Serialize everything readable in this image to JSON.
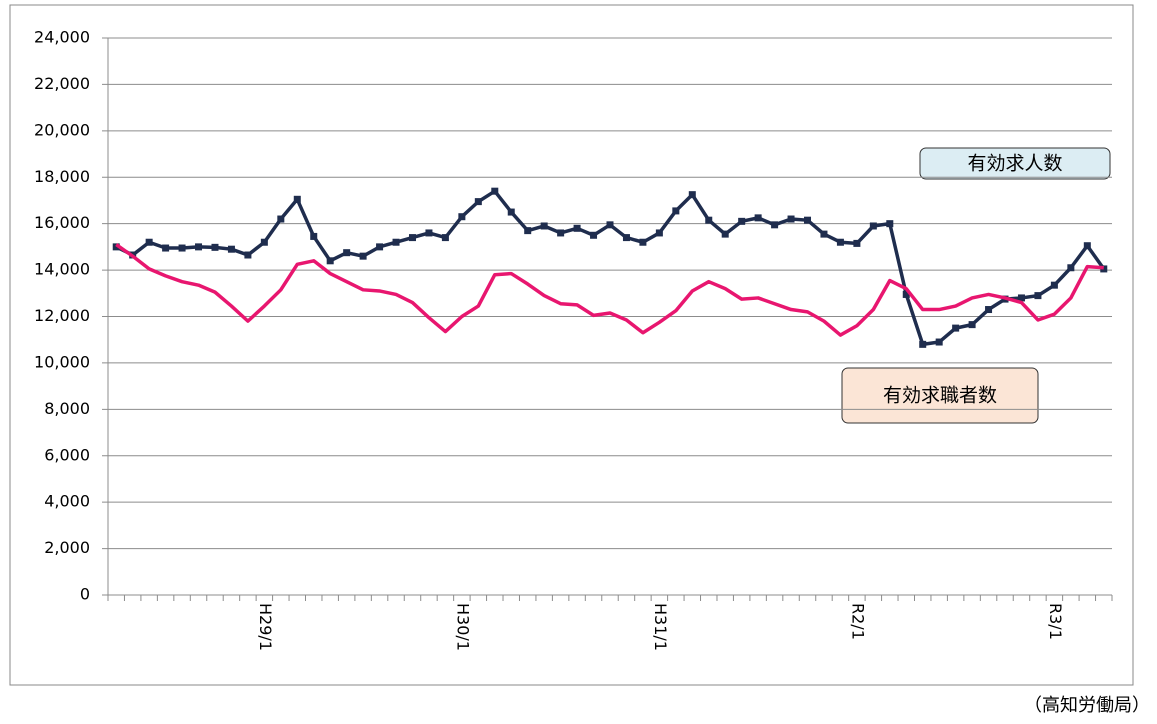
{
  "chart_data": {
    "type": "line",
    "categories": [
      null,
      null,
      null,
      null,
      null,
      null,
      null,
      null,
      null,
      "H29/1",
      null,
      null,
      null,
      null,
      null,
      null,
      null,
      null,
      null,
      null,
      null,
      "H30/1",
      null,
      null,
      null,
      null,
      null,
      null,
      null,
      null,
      null,
      null,
      null,
      "H31/1",
      null,
      null,
      null,
      null,
      null,
      null,
      null,
      null,
      null,
      null,
      null,
      "R2/1",
      null,
      null,
      null,
      null,
      null,
      null,
      null,
      null,
      null,
      null,
      null,
      "R3/1",
      null,
      null,
      null
    ],
    "series": [
      {
        "name": "有効求人数",
        "color": "#1f2d4e",
        "marker": true,
        "values": [
          15000,
          14650,
          15200,
          14950,
          14950,
          15000,
          14980,
          14900,
          14650,
          15200,
          16200,
          17050,
          15450,
          14400,
          14750,
          14600,
          15000,
          15200,
          15400,
          15600,
          15400,
          16300,
          16950,
          17400,
          16500,
          15700,
          15900,
          15600,
          15800,
          15500,
          15950,
          15400,
          15200,
          15600,
          16550,
          17250,
          16150,
          15550,
          16100,
          16250,
          15950,
          16200,
          16150,
          15550,
          15200,
          15150,
          15900,
          16000,
          12950,
          10800,
          10900,
          11500,
          11650,
          12300,
          12750,
          12800,
          12900,
          13350,
          14100,
          15050,
          14050
        ]
      },
      {
        "name": "有効求職者数",
        "color": "#e8166f",
        "marker": false,
        "values": [
          15100,
          14600,
          14050,
          13750,
          13500,
          13350,
          13050,
          12450,
          11800,
          12450,
          13150,
          14250,
          14400,
          13850,
          13500,
          13150,
          13100,
          12950,
          12600,
          11950,
          11350,
          12000,
          12450,
          13800,
          13850,
          13400,
          12900,
          12550,
          12500,
          12050,
          12150,
          11850,
          11300,
          11750,
          12250,
          13100,
          13500,
          13200,
          12750,
          12800,
          12550,
          12300,
          12200,
          11800,
          11200,
          11600,
          12300,
          13550,
          13200,
          12300,
          12300,
          12450,
          12800,
          12950,
          12800,
          12600,
          11850,
          12100,
          12800,
          14150,
          14100
        ]
      }
    ],
    "ylim": [
      0,
      24000
    ],
    "yticks": [
      0,
      {
        "value": 2000,
        "label": "2,000"
      },
      {
        "value": 4000,
        "label": "4,000"
      },
      {
        "value": 6000,
        "label": "6,000"
      },
      {
        "value": 8000,
        "label": "8,000"
      },
      {
        "value": 10000,
        "label": "10,000"
      },
      {
        "value": 12000,
        "label": "12,000"
      },
      {
        "value": 14000,
        "label": "14,000"
      },
      {
        "value": 16000,
        "label": "16,000"
      },
      {
        "value": 18000,
        "label": "18,000"
      },
      {
        "value": 20000,
        "label": "20,000"
      },
      {
        "value": 22000,
        "label": "22,000"
      },
      {
        "value": 24000,
        "label": "24,000"
      }
    ],
    "grid": true,
    "source": "（高知労働局）"
  }
}
